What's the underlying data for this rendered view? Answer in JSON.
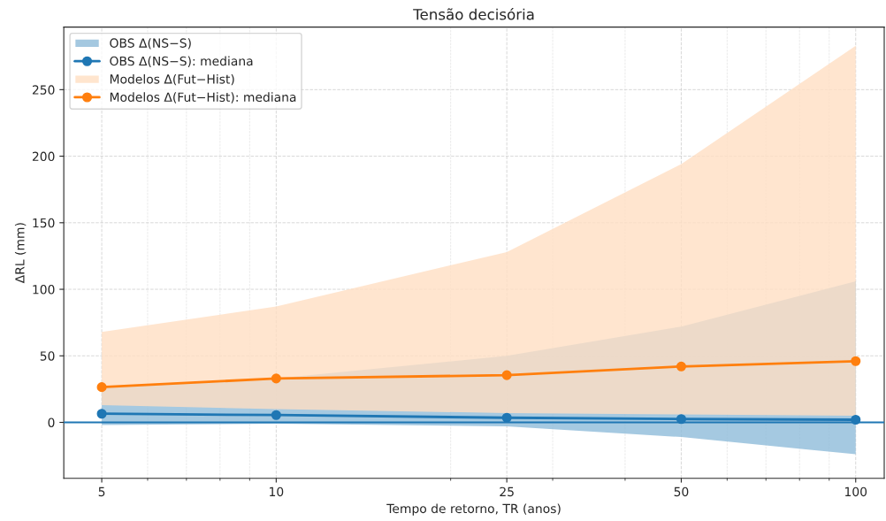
{
  "chart_data": {
    "type": "line",
    "title": "Tensão decisória",
    "xlabel": "Tempo de retorno, TR (anos)",
    "ylabel": "ΔRL (mm)",
    "x": [
      5,
      10,
      25,
      50,
      100
    ],
    "series": [
      {
        "type": "area",
        "name": "OBS Δ(NS−S)",
        "color": "#1f77b4",
        "values": [
          null,
          null,
          null,
          null,
          null
        ]
      },
      {
        "type": "line",
        "name": "OBS Δ(NS−S): mediana",
        "color": "#1f77b4",
        "values": [
          6.5,
          5.5,
          3.5,
          2.5,
          2
        ],
        "lower": [
          -2,
          -1,
          -3,
          -11,
          -24
        ],
        "upper": [
          26,
          33,
          50,
          72,
          106
        ]
      },
      {
        "type": "area",
        "name": "Modelos Δ(Fut−Hist)",
        "color": "#ff7f0e",
        "values": [
          null,
          null,
          null,
          null,
          null
        ]
      },
      {
        "type": "line",
        "name": "Modelos Δ(Fut−Hist): mediana",
        "color": "#ff7f0e",
        "values": [
          26.5,
          33,
          35.5,
          42,
          46
        ],
        "lower": [
          13,
          10,
          7,
          6,
          5
        ],
        "upper": [
          68,
          87,
          128,
          194,
          283
        ]
      }
    ],
    "log": "x",
    "xlim": [
      4.3,
      112
    ],
    "xticks": [
      5,
      10,
      25,
      50,
      100
    ],
    "ylim": [
      -42,
      297
    ],
    "yticks": [
      0,
      50,
      100,
      150,
      200,
      250
    ],
    "ref_lines": [
      {
        "axis": "y",
        "value": 0,
        "color": "#1f77b4",
        "line_style": "solid"
      }
    ],
    "grid": true,
    "legend": "top left",
    "marker": "circle",
    "line_style": "solid"
  }
}
